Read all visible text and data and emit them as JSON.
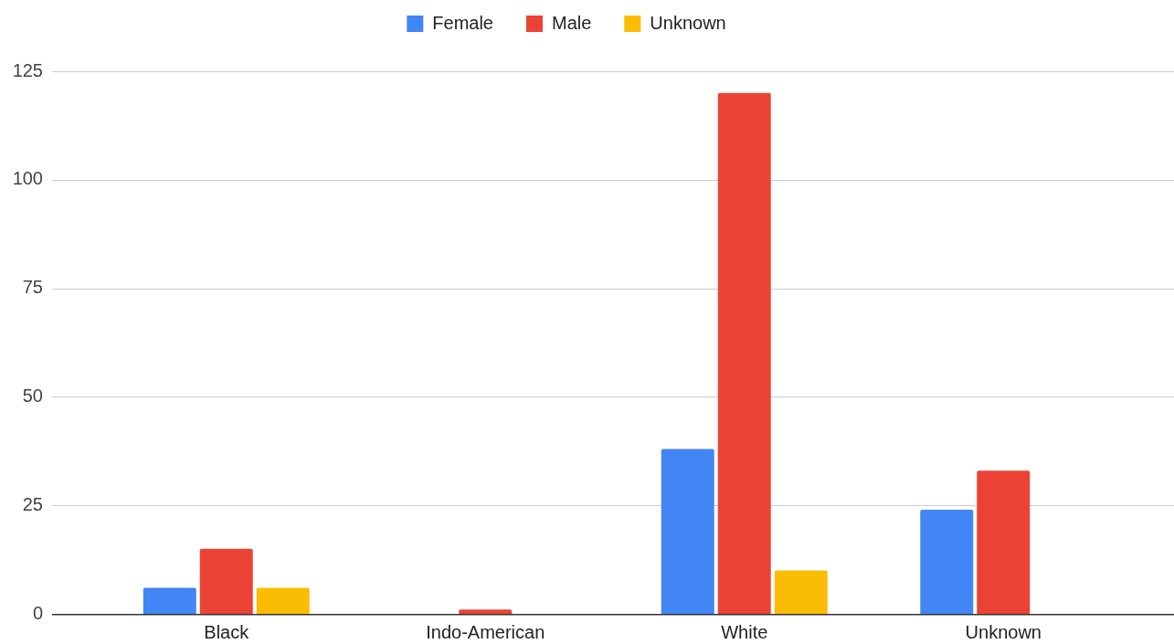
{
  "chart_data": {
    "type": "bar",
    "categories": [
      "Black",
      "Indo-American",
      "White",
      "Unknown"
    ],
    "series": [
      {
        "name": "Female",
        "color": "#4285f4",
        "values": [
          6,
          0,
          38,
          24
        ]
      },
      {
        "name": "Male",
        "color": "#ea4335",
        "values": [
          15,
          1,
          120,
          33
        ]
      },
      {
        "name": "Unknown",
        "color": "#fbbc04",
        "values": [
          6,
          0,
          10,
          0
        ]
      }
    ],
    "ylim": [
      0,
      125
    ],
    "yticks": [
      0,
      25,
      50,
      75,
      100,
      125
    ],
    "grid": "y",
    "legend": "top"
  }
}
